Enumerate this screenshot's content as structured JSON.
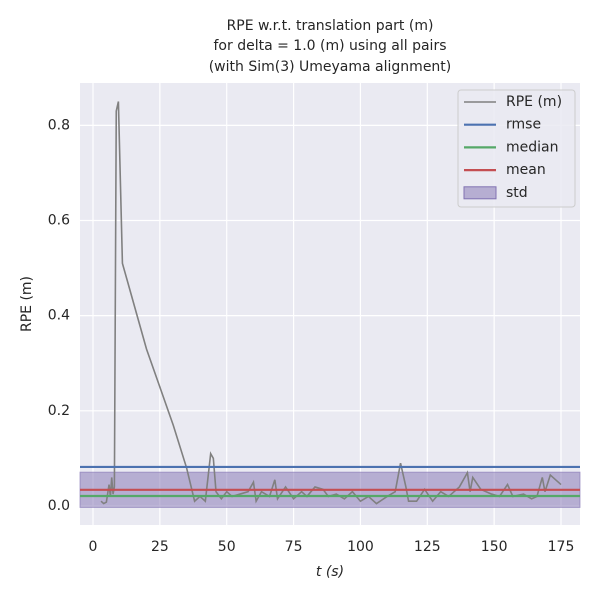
{
  "chart_data": {
    "type": "line",
    "title": [
      "RPE w.r.t. translation part (m)",
      "for delta = 1.0 (m) using all pairs",
      "(with Sim(3) Umeyama alignment)"
    ],
    "xlabel": "t (s)",
    "ylabel": "RPE (m)",
    "x": [
      3,
      4,
      5,
      6,
      6.5,
      7,
      7.5,
      8,
      8.7,
      9.5,
      11,
      20,
      30,
      35,
      38,
      40,
      42,
      44,
      45,
      46,
      48,
      50,
      52,
      55,
      58,
      60,
      61,
      63,
      66,
      68,
      69,
      72,
      75,
      78,
      80,
      83,
      86,
      88,
      91,
      94,
      97,
      100,
      103,
      106,
      110,
      113,
      115,
      117,
      118,
      121,
      124,
      127,
      130,
      133,
      137,
      140,
      141,
      142,
      145,
      149,
      152,
      155,
      157,
      161,
      164,
      166,
      168,
      169,
      171,
      173,
      175
    ],
    "series": [
      {
        "name": "RPE (m)",
        "color": "#808080",
        "values": [
          0.01,
          0.005,
          0.008,
          0.045,
          0.02,
          0.06,
          0.025,
          0.04,
          0.83,
          0.85,
          0.51,
          0.33,
          0.17,
          0.08,
          0.01,
          0.02,
          0.01,
          0.11,
          0.1,
          0.03,
          0.015,
          0.03,
          0.02,
          0.025,
          0.03,
          0.05,
          0.01,
          0.03,
          0.02,
          0.055,
          0.015,
          0.04,
          0.015,
          0.03,
          0.02,
          0.04,
          0.035,
          0.02,
          0.025,
          0.015,
          0.03,
          0.01,
          0.02,
          0.005,
          0.02,
          0.03,
          0.09,
          0.04,
          0.01,
          0.01,
          0.035,
          0.01,
          0.03,
          0.02,
          0.04,
          0.07,
          0.03,
          0.06,
          0.035,
          0.025,
          0.02,
          0.045,
          0.02,
          0.025,
          0.015,
          0.02,
          0.06,
          0.03,
          0.065,
          0.055,
          0.045
        ]
      }
    ],
    "stats": [
      {
        "name": "rmse",
        "color": "#4c72b0",
        "value": 0.082
      },
      {
        "name": "median",
        "color": "#55a868",
        "value": 0.021
      },
      {
        "name": "mean",
        "color": "#c44e52",
        "value": 0.034
      }
    ],
    "std": {
      "name": "std",
      "color": "#8172b2",
      "value": 0.037
    },
    "xlim": [
      -4.86,
      182.1
    ],
    "ylim": [
      -0.04,
      0.889
    ],
    "xticks": [
      0,
      25,
      50,
      75,
      100,
      125,
      150,
      175
    ],
    "yticks": [
      {
        "value": 0,
        "label": "0.0"
      },
      0.2,
      0.4,
      0.6,
      0.8
    ],
    "grid": true,
    "legend": "upper right"
  }
}
